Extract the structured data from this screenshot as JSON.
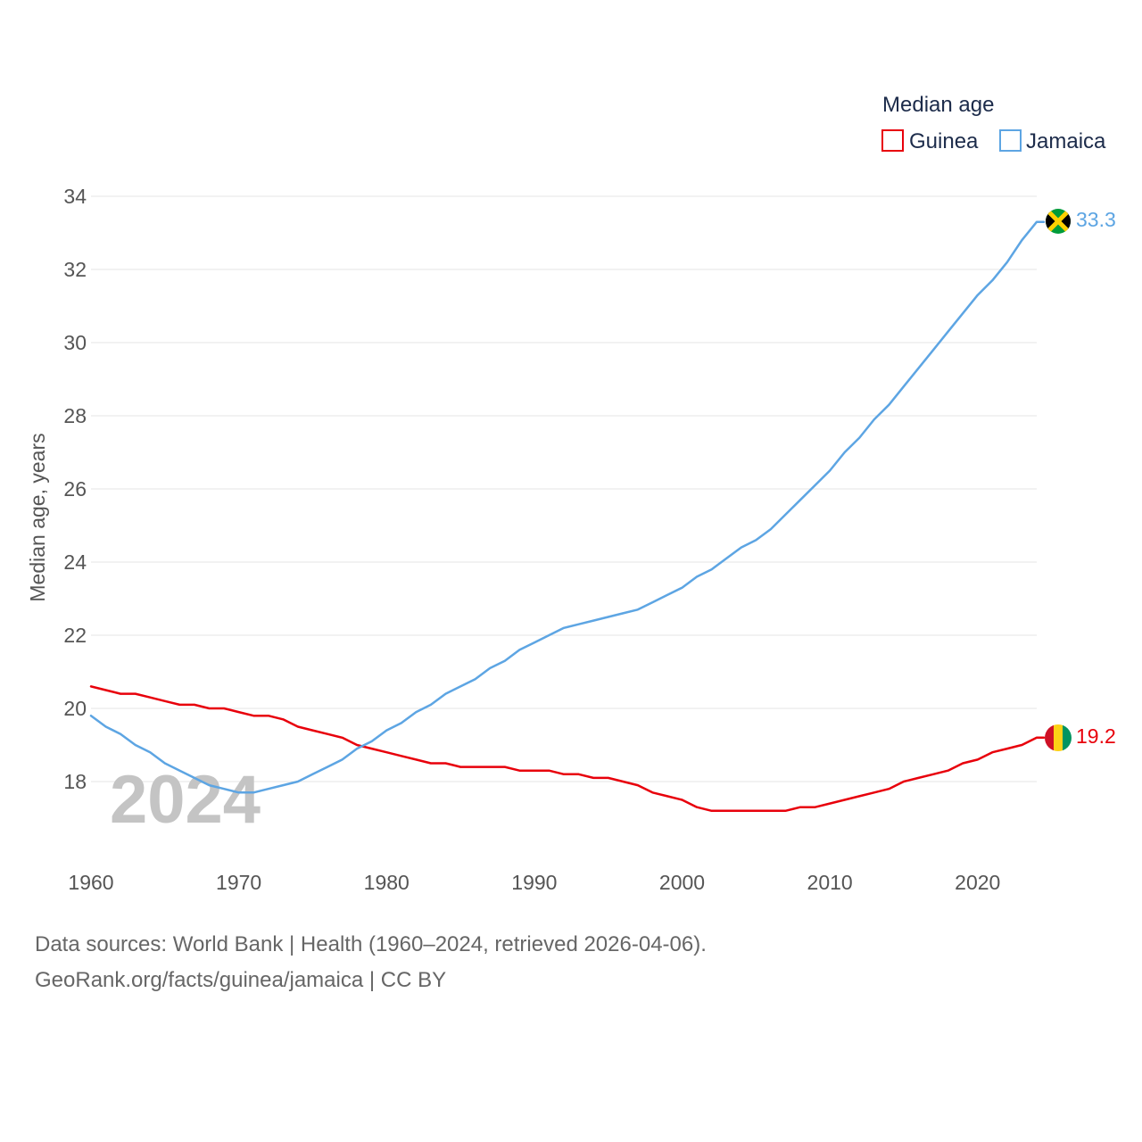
{
  "chart_data": {
    "type": "line",
    "legend_title": "Median age",
    "ylabel": "Median age, years",
    "xlabel": "",
    "current_year": "2024",
    "xlim": [
      1960,
      2024
    ],
    "ylim": [
      16.5,
      34.5
    ],
    "x_ticks": [
      1960,
      1970,
      1980,
      1990,
      2000,
      2010,
      2020
    ],
    "y_ticks": [
      18,
      20,
      22,
      24,
      26,
      28,
      30,
      32,
      34
    ],
    "legend_position": "top-right",
    "x": [
      1960,
      1961,
      1962,
      1963,
      1964,
      1965,
      1966,
      1967,
      1968,
      1969,
      1970,
      1971,
      1972,
      1973,
      1974,
      1975,
      1976,
      1977,
      1978,
      1979,
      1980,
      1981,
      1982,
      1983,
      1984,
      1985,
      1986,
      1987,
      1988,
      1989,
      1990,
      1991,
      1992,
      1993,
      1994,
      1995,
      1996,
      1997,
      1998,
      1999,
      2000,
      2001,
      2002,
      2003,
      2004,
      2005,
      2006,
      2007,
      2008,
      2009,
      2010,
      2011,
      2012,
      2013,
      2014,
      2015,
      2016,
      2017,
      2018,
      2019,
      2020,
      2021,
      2022,
      2023,
      2024
    ],
    "series": [
      {
        "name": "Guinea",
        "color": "#e8000b",
        "end_label": "19.2",
        "flag": "guinea-flag",
        "values": [
          20.6,
          20.5,
          20.4,
          20.4,
          20.3,
          20.2,
          20.1,
          20.1,
          20.0,
          20.0,
          19.9,
          19.8,
          19.8,
          19.7,
          19.5,
          19.4,
          19.3,
          19.2,
          19.0,
          18.9,
          18.8,
          18.7,
          18.6,
          18.5,
          18.5,
          18.4,
          18.4,
          18.4,
          18.4,
          18.3,
          18.3,
          18.3,
          18.2,
          18.2,
          18.1,
          18.1,
          18.0,
          17.9,
          17.7,
          17.6,
          17.5,
          17.3,
          17.2,
          17.2,
          17.2,
          17.2,
          17.2,
          17.2,
          17.3,
          17.3,
          17.4,
          17.5,
          17.6,
          17.7,
          17.8,
          18.0,
          18.1,
          18.2,
          18.3,
          18.5,
          18.6,
          18.8,
          18.9,
          19.0,
          19.2
        ]
      },
      {
        "name": "Jamaica",
        "color": "#5da5e3",
        "end_label": "33.3",
        "flag": "jamaica-flag",
        "values": [
          19.8,
          19.5,
          19.3,
          19.0,
          18.8,
          18.5,
          18.3,
          18.1,
          17.9,
          17.8,
          17.7,
          17.7,
          17.8,
          17.9,
          18.0,
          18.2,
          18.4,
          18.6,
          18.9,
          19.1,
          19.4,
          19.6,
          19.9,
          20.1,
          20.4,
          20.6,
          20.8,
          21.1,
          21.3,
          21.6,
          21.8,
          22.0,
          22.2,
          22.3,
          22.4,
          22.5,
          22.6,
          22.7,
          22.9,
          23.1,
          23.3,
          23.6,
          23.8,
          24.1,
          24.4,
          24.6,
          24.9,
          25.3,
          25.7,
          26.1,
          26.5,
          27.0,
          27.4,
          27.9,
          28.3,
          28.8,
          29.3,
          29.8,
          30.3,
          30.8,
          31.3,
          31.7,
          32.2,
          32.8,
          33.3
        ]
      }
    ]
  },
  "footer": {
    "line1": "Data sources: World Bank | Health (1960–2024, retrieved 2026-04-06).",
    "line2": "GeoRank.org/facts/guinea/jamaica | CC BY"
  }
}
